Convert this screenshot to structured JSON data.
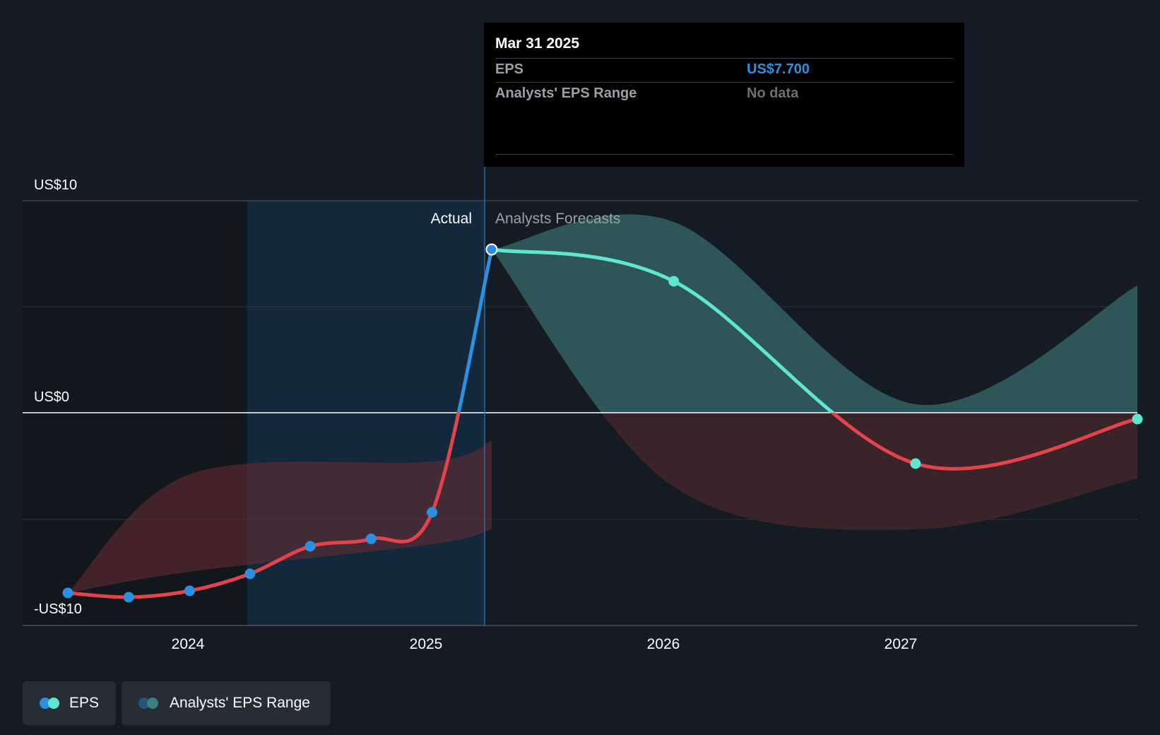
{
  "tooltip": {
    "date": "Mar 31 2025",
    "eps_label": "EPS",
    "eps_value": "US$7.700",
    "range_label": "Analysts' EPS Range",
    "range_value": "No data"
  },
  "section_labels": {
    "actual": "Actual",
    "forecast": "Analysts Forecasts"
  },
  "legend": {
    "eps": "EPS",
    "range": "Analysts' EPS Range"
  },
  "colors": {
    "background": "#151b24",
    "eps_actual": "#2d8fdf",
    "eps_forecast": "#5ee6d0",
    "eps_negative": "#e5434b",
    "range_positive": "#2e5558",
    "range_negative": "#3a2329",
    "actual_highlight": "#132a40",
    "tooltip_eps_value": "#2d8fdf",
    "tooltip_no_data": "#6b7075"
  },
  "chart_data": {
    "type": "line",
    "title": "",
    "xlabel": "",
    "ylabel": "",
    "y_ticks": [
      "US$10",
      "US$0",
      "-US$10"
    ],
    "ylim": [
      -10,
      10
    ],
    "x_ticks": [
      "2024",
      "2025",
      "2026",
      "2027"
    ],
    "xlim": [
      "2023-06-30",
      "2027-12-01"
    ],
    "actual_until": "2025-03-31",
    "series": [
      {
        "name": "EPS",
        "kind": "actual",
        "points": [
          {
            "x": "2023-06-30",
            "y": -8.5
          },
          {
            "x": "2023-09-30",
            "y": -8.7
          },
          {
            "x": "2023-12-31",
            "y": -8.4
          },
          {
            "x": "2024-03-31",
            "y": -7.6
          },
          {
            "x": "2024-06-30",
            "y": -6.3
          },
          {
            "x": "2024-09-30",
            "y": -5.95
          },
          {
            "x": "2024-12-31",
            "y": -4.7
          },
          {
            "x": "2025-03-31",
            "y": 7.7
          }
        ]
      },
      {
        "name": "EPS",
        "kind": "forecast",
        "points": [
          {
            "x": "2025-03-31",
            "y": 7.7
          },
          {
            "x": "2025-12-31",
            "y": 6.2
          },
          {
            "x": "2026-12-31",
            "y": -2.4
          },
          {
            "x": "2027-12-01",
            "y": -0.3
          }
        ]
      }
    ],
    "actual_range": {
      "x": [
        "2023-06-30",
        "2023-12-31",
        "2024-12-31",
        "2025-03-31"
      ],
      "high": [
        -8.5,
        -2.9,
        -2.3,
        -1.3
      ],
      "low": [
        -8.5,
        -7.5,
        -6.2,
        -5.5
      ]
    },
    "forecast_range": {
      "x": [
        "2025-03-31",
        "2025-12-31",
        "2026-12-31",
        "2027-12-01"
      ],
      "high": [
        7.7,
        9.0,
        0.4,
        6.0
      ],
      "low": [
        7.7,
        -3.5,
        -5.5,
        -3.1
      ]
    }
  }
}
